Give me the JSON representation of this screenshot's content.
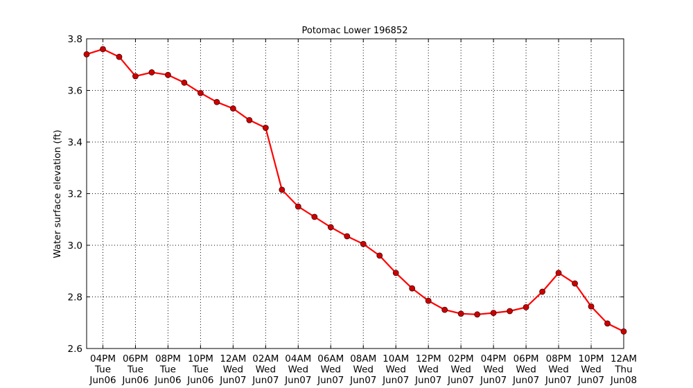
{
  "chart_data": {
    "type": "line",
    "title": "Potomac Lower 196852",
    "xlabel": "",
    "ylabel": "Water surface elevation (ft)",
    "ylim": [
      2.6,
      3.8
    ],
    "yticks": [
      "2.6",
      "2.8",
      "3.0",
      "3.2",
      "3.4",
      "3.6",
      "3.8"
    ],
    "grid": true,
    "x_start_label": "Jun06 15:00",
    "xlim_hours": [
      0,
      33
    ],
    "xticks": [
      [
        "04PM",
        "Tue",
        "Jun06"
      ],
      [
        "06PM",
        "Tue",
        "Jun06"
      ],
      [
        "08PM",
        "Tue",
        "Jun06"
      ],
      [
        "10PM",
        "Tue",
        "Jun06"
      ],
      [
        "12AM",
        "Wed",
        "Jun07"
      ],
      [
        "02AM",
        "Wed",
        "Jun07"
      ],
      [
        "04AM",
        "Wed",
        "Jun07"
      ],
      [
        "06AM",
        "Wed",
        "Jun07"
      ],
      [
        "08AM",
        "Wed",
        "Jun07"
      ],
      [
        "10AM",
        "Wed",
        "Jun07"
      ],
      [
        "12PM",
        "Wed",
        "Jun07"
      ],
      [
        "02PM",
        "Wed",
        "Jun07"
      ],
      [
        "04PM",
        "Wed",
        "Jun07"
      ],
      [
        "06PM",
        "Wed",
        "Jun07"
      ],
      [
        "08PM",
        "Wed",
        "Jun07"
      ],
      [
        "10PM",
        "Wed",
        "Jun07"
      ],
      [
        "12AM",
        "Thu",
        "Jun08"
      ]
    ],
    "series": [
      {
        "color": "#ff0000",
        "marker_color": "#cc0000",
        "values": [
          3.74,
          3.76,
          3.73,
          3.655,
          3.67,
          3.66,
          3.63,
          3.59,
          3.555,
          3.53,
          3.485,
          3.455,
          3.215,
          3.15,
          3.11,
          3.07,
          3.035,
          3.005,
          2.96,
          2.893,
          2.833,
          2.785,
          2.75,
          2.735,
          2.732,
          2.738,
          2.745,
          2.76,
          2.82,
          2.893,
          2.852,
          2.763,
          2.697,
          2.666
        ]
      }
    ]
  }
}
